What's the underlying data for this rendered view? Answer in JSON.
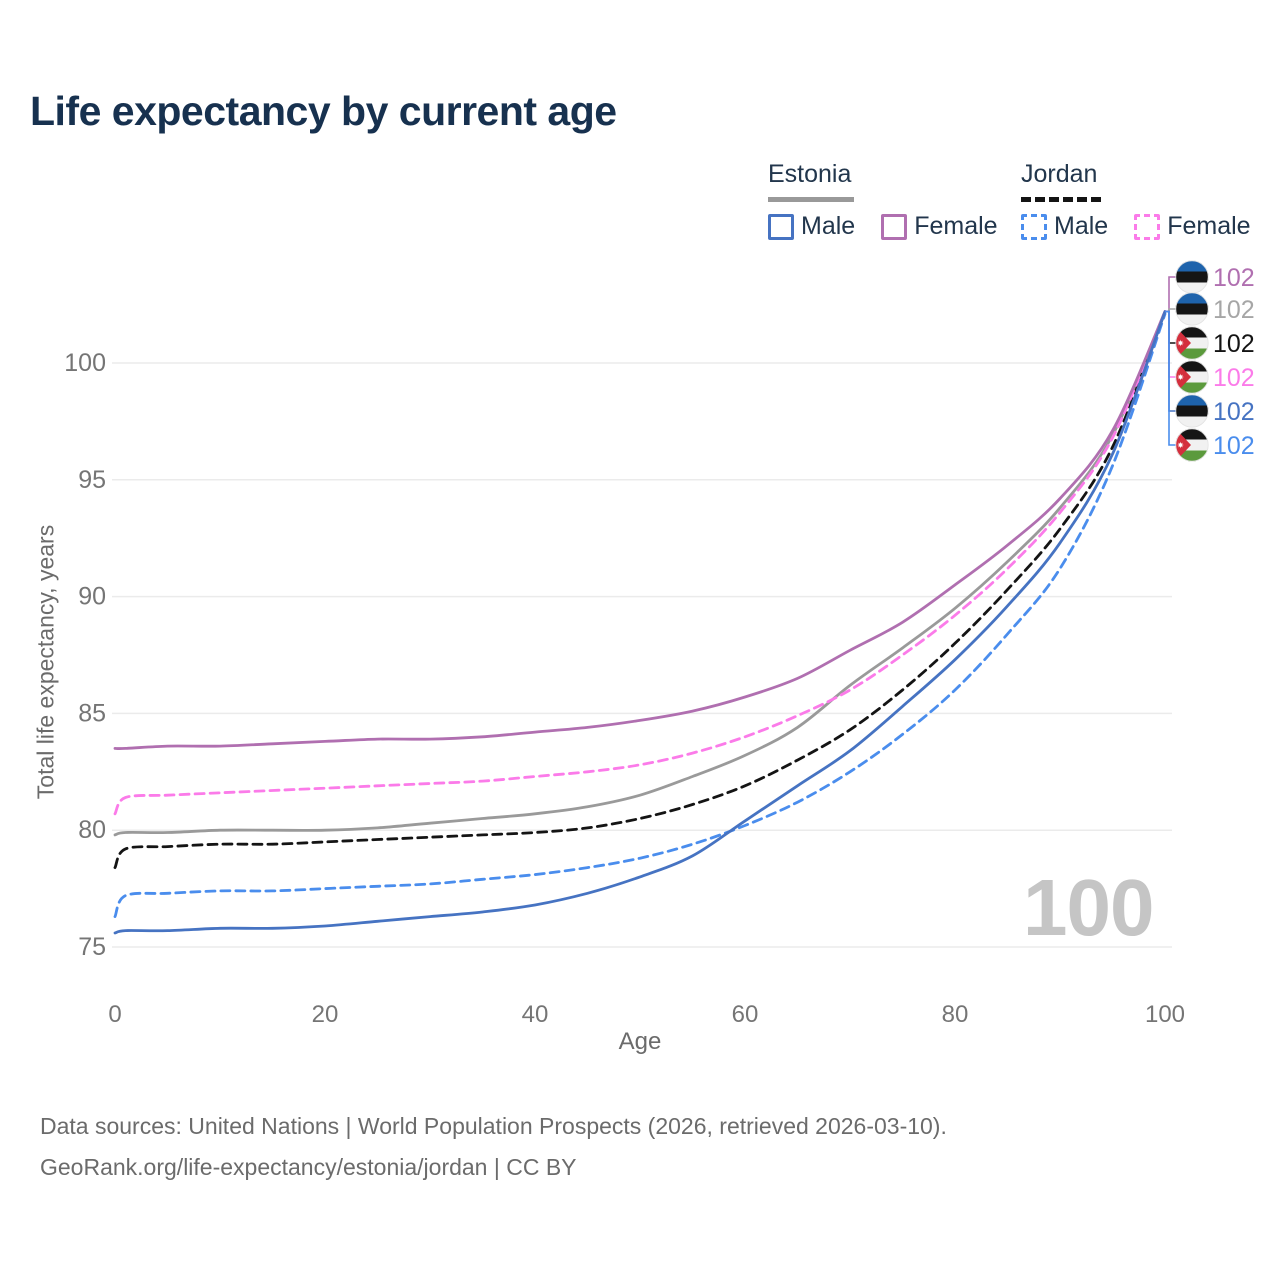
{
  "header": {
    "title": "Life expectancy by current age"
  },
  "legend": {
    "groups": [
      {
        "title": "Estonia",
        "line_style": "solid",
        "underline_color": "#999999",
        "items": [
          {
            "label": "Male",
            "color": "#4673c2",
            "dash": false
          },
          {
            "label": "Female",
            "color": "#b06fb0",
            "dash": false
          }
        ]
      },
      {
        "title": "Jordan",
        "line_style": "dashed",
        "underline_color": "#141414",
        "items": [
          {
            "label": "Male",
            "color": "#4a8ded",
            "dash": true
          },
          {
            "label": "Female",
            "color": "#fb7be9",
            "dash": true
          }
        ]
      }
    ]
  },
  "chart_data": {
    "type": "line",
    "title": "Life expectancy by current age",
    "xlabel": "Age",
    "ylabel": "Total life expectancy, years",
    "xlim": [
      0,
      100
    ],
    "ylim": [
      75,
      100
    ],
    "x_ticks": [
      0,
      20,
      40,
      60,
      80,
      100
    ],
    "y_ticks": [
      75,
      80,
      85,
      90,
      95,
      100
    ],
    "grid": "horizontal",
    "legend_position": "top-right",
    "ages": [
      0,
      1,
      5,
      10,
      15,
      20,
      25,
      30,
      35,
      40,
      45,
      50,
      55,
      60,
      65,
      70,
      75,
      80,
      85,
      90,
      95,
      100
    ],
    "series": [
      {
        "name": "Estonia",
        "country": "Estonia",
        "sex": "Both",
        "color": "#9a9a9a",
        "dash": false,
        "values": [
          79.8,
          79.9,
          79.9,
          80.0,
          80.0,
          80.0,
          80.1,
          80.3,
          80.5,
          80.7,
          81.0,
          81.5,
          82.3,
          83.2,
          84.4,
          86.2,
          87.8,
          89.5,
          91.5,
          93.8,
          96.9,
          102.2
        ]
      },
      {
        "name": "Jordan",
        "country": "Jordan",
        "sex": "Both",
        "color": "#141414",
        "dash": true,
        "values": [
          78.4,
          79.2,
          79.3,
          79.4,
          79.4,
          79.5,
          79.6,
          79.7,
          79.8,
          79.9,
          80.1,
          80.5,
          81.1,
          81.9,
          83.0,
          84.3,
          86.0,
          88.0,
          90.3,
          92.9,
          96.4,
          102.2
        ]
      },
      {
        "name": "Jordan Female",
        "country": "Jordan",
        "sex": "Female",
        "color": "#fb7be9",
        "dash": true,
        "values": [
          80.7,
          81.4,
          81.5,
          81.6,
          81.7,
          81.8,
          81.9,
          82.0,
          82.1,
          82.3,
          82.5,
          82.8,
          83.3,
          84.0,
          84.9,
          86.0,
          87.5,
          89.2,
          91.2,
          93.6,
          96.8,
          102.2
        ]
      },
      {
        "name": "Estonia Female",
        "country": "Estonia",
        "sex": "Female",
        "color": "#b06fb0",
        "dash": false,
        "values": [
          83.5,
          83.5,
          83.6,
          83.6,
          83.7,
          83.8,
          83.9,
          83.9,
          84.0,
          84.2,
          84.4,
          84.7,
          85.1,
          85.7,
          86.5,
          87.7,
          88.9,
          90.5,
          92.2,
          94.2,
          97.1,
          102.2
        ]
      },
      {
        "name": "Jordan Male",
        "country": "Jordan",
        "sex": "Male",
        "color": "#4a8ded",
        "dash": true,
        "values": [
          76.3,
          77.2,
          77.3,
          77.4,
          77.4,
          77.5,
          77.6,
          77.7,
          77.9,
          78.1,
          78.4,
          78.8,
          79.4,
          80.2,
          81.2,
          82.5,
          84.1,
          86.0,
          88.4,
          91.2,
          95.6,
          102.1
        ]
      },
      {
        "name": "Estonia Male",
        "country": "Estonia",
        "sex": "Male",
        "color": "#4673c2",
        "dash": false,
        "values": [
          75.6,
          75.7,
          75.7,
          75.8,
          75.8,
          75.9,
          76.1,
          76.3,
          76.5,
          76.8,
          77.3,
          78.0,
          78.9,
          80.4,
          81.9,
          83.4,
          85.3,
          87.3,
          89.6,
          92.3,
          96.1,
          102.2
        ]
      }
    ],
    "end_labels": [
      {
        "series": "Estonia Female",
        "flag": "estonia",
        "value": "102",
        "color": "#b06fb0"
      },
      {
        "series": "Estonia",
        "flag": "estonia",
        "value": "102",
        "color": "#a6a6a6"
      },
      {
        "series": "Jordan",
        "flag": "jordan",
        "value": "102",
        "color": "#141414"
      },
      {
        "series": "Jordan Female",
        "flag": "jordan",
        "value": "102",
        "color": "#fb7be9"
      },
      {
        "series": "Estonia Male",
        "flag": "estonia",
        "value": "102",
        "color": "#4673c2"
      },
      {
        "series": "Jordan Male",
        "flag": "jordan",
        "value": "102",
        "color": "#4a8ded"
      }
    ],
    "watermark": "100",
    "flag_colors": {
      "estonia": {
        "bands": [
          "#1e63ac",
          "#151515",
          "#f1f1f1"
        ]
      },
      "jordan": {
        "bands": [
          "#151515",
          "#f1f1f1",
          "#5b9a3c"
        ],
        "triangle": "#d42f3d",
        "star": "#ffffff"
      }
    }
  },
  "footer": {
    "line1": "Data sources: United Nations | World Population Prospects (2026, retrieved 2026-03-10).",
    "line2": "GeoRank.org/life-expectancy/estonia/jordan | CC BY"
  }
}
